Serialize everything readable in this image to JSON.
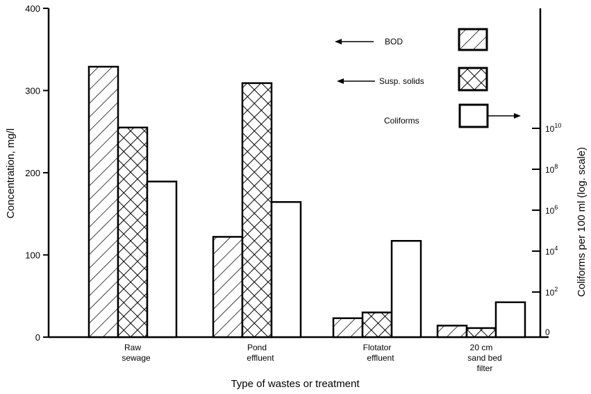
{
  "chart_data": {
    "type": "bar",
    "xlabel": "Type of wastes or treatment",
    "ylabel": "Concentration, mg/l",
    "ylabel_right": "Coliforms per 100 ml (log. scale)",
    "ylim": [
      0,
      400
    ],
    "yticks": [
      "0",
      "100",
      "200",
      "300",
      "400"
    ],
    "yticks_right": [
      {
        "base": "0",
        "exp": ""
      },
      {
        "base": "10",
        "exp": "2"
      },
      {
        "base": "10",
        "exp": "4"
      },
      {
        "base": "10",
        "exp": "6"
      },
      {
        "base": "10",
        "exp": "8"
      },
      {
        "base": "10",
        "exp": "10"
      }
    ],
    "categories": [
      [
        "Raw",
        "sewage"
      ],
      [
        "Pond",
        "effluent"
      ],
      [
        "Flotator",
        "effluent"
      ],
      [
        "20 cm",
        "sand bed",
        "filter"
      ]
    ],
    "series": [
      {
        "name": "BOD",
        "axis": "left",
        "unit": "mg/l",
        "values": [
          329,
          122,
          23,
          14
        ]
      },
      {
        "name": "Susp. solids",
        "axis": "left",
        "unit": "mg/l",
        "values": [
          255,
          309,
          30,
          11
        ]
      },
      {
        "name": "Coliforms",
        "axis": "right",
        "unit": "log10 per 100 ml",
        "values": [
          7.4,
          6.4,
          4.5,
          1.5
        ]
      }
    ],
    "legend_position": "top-right"
  }
}
